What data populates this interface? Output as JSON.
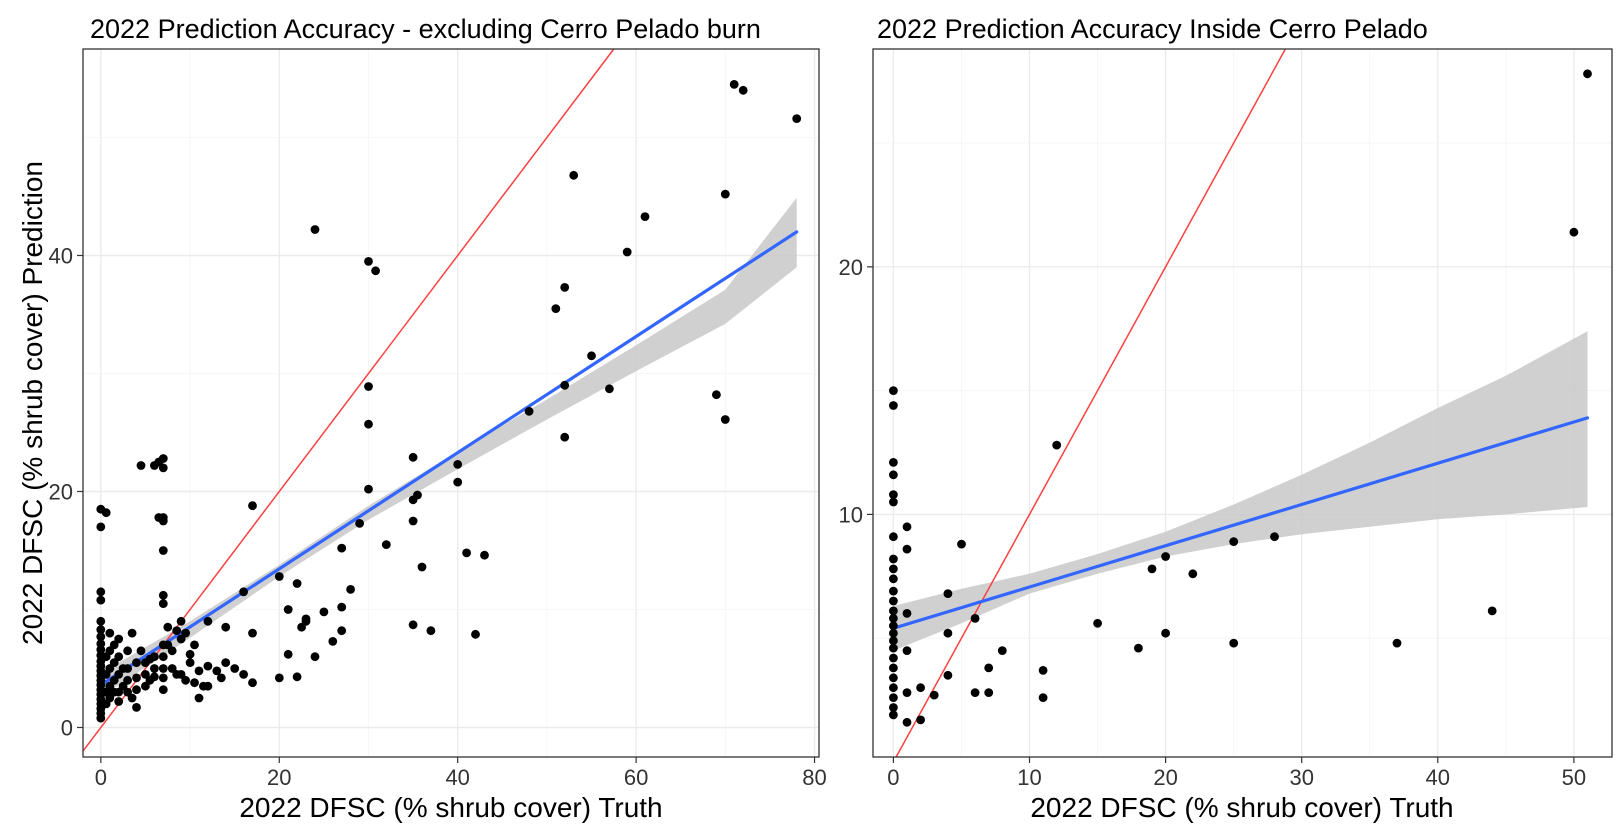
{
  "chart_data": [
    {
      "type": "scatter",
      "title": "2022 Prediction Accuracy - excluding Cerro Pelado burn",
      "xlabel": "2022 DFSC (% shrub cover) Truth",
      "ylabel": "2022 DFSC (% shrub cover) Prediction",
      "xlim": [
        -2,
        80.5
      ],
      "ylim": [
        -2.5,
        57.5
      ],
      "xticks": [
        0,
        20,
        40,
        60,
        80
      ],
      "yticks": [
        0,
        20,
        40
      ],
      "xtick_labels": [
        "0",
        "20",
        "40",
        "60",
        "80"
      ],
      "ytick_labels": [
        "0",
        "20",
        "40"
      ],
      "grid": true,
      "colors": {
        "points": "#000000",
        "fit": "#3366ff",
        "band": "#c8c8c8",
        "identity": "#ff4040"
      },
      "identity_line": {
        "slope": 1,
        "intercept": 0
      },
      "fit_line": {
        "x": [
          0,
          78
        ],
        "y": [
          3.6,
          42.0
        ]
      },
      "confidence_band": {
        "x": [
          0,
          10,
          20,
          30,
          40,
          50,
          60,
          70,
          78
        ],
        "lower": [
          2.6,
          7.6,
          12.8,
          17.6,
          21.9,
          26.1,
          30.2,
          34.2,
          39.0
        ],
        "upper": [
          4.6,
          9.0,
          13.8,
          18.8,
          23.4,
          27.8,
          32.4,
          37.1,
          44.9
        ]
      },
      "points": [
        [
          0,
          18.5
        ],
        [
          0,
          17
        ],
        [
          0.6,
          18.2
        ],
        [
          0,
          11.5
        ],
        [
          0,
          10.8
        ],
        [
          0,
          9
        ],
        [
          0,
          8.3
        ],
        [
          0,
          7.7
        ],
        [
          0,
          7.1
        ],
        [
          0,
          6.6
        ],
        [
          0,
          6.1
        ],
        [
          0,
          5.6
        ],
        [
          0,
          5.2
        ],
        [
          0,
          4.8
        ],
        [
          0,
          4.4
        ],
        [
          0,
          4
        ],
        [
          0,
          3.6
        ],
        [
          0,
          3.2
        ],
        [
          0,
          2.8
        ],
        [
          0,
          2.4
        ],
        [
          0,
          2
        ],
        [
          0,
          1.6
        ],
        [
          0,
          1.2
        ],
        [
          0,
          0.8
        ],
        [
          0.6,
          6
        ],
        [
          0.6,
          4.5
        ],
        [
          0.6,
          3
        ],
        [
          0.6,
          2
        ],
        [
          1,
          8
        ],
        [
          1,
          6.5
        ],
        [
          1,
          5
        ],
        [
          1,
          3.5
        ],
        [
          1,
          2.5
        ],
        [
          1.5,
          7
        ],
        [
          1.5,
          5.5
        ],
        [
          1.5,
          4
        ],
        [
          1.5,
          3
        ],
        [
          2,
          7.5
        ],
        [
          2,
          6
        ],
        [
          2,
          4.5
        ],
        [
          2,
          3
        ],
        [
          2,
          2.2
        ],
        [
          2.5,
          5
        ],
        [
          2.5,
          3.5
        ],
        [
          3,
          6.5
        ],
        [
          3,
          5
        ],
        [
          3,
          4
        ],
        [
          3,
          3
        ],
        [
          3.5,
          2.5
        ],
        [
          3.5,
          8
        ],
        [
          4,
          5.5
        ],
        [
          4,
          4.2
        ],
        [
          4,
          3.2
        ],
        [
          4,
          1.7
        ],
        [
          4.5,
          22.2
        ],
        [
          4.5,
          6.5
        ],
        [
          5,
          5.5
        ],
        [
          5,
          4.5
        ],
        [
          5,
          3.5
        ],
        [
          5.5,
          4
        ],
        [
          5.5,
          5.8
        ],
        [
          6,
          22.2
        ],
        [
          6,
          6
        ],
        [
          6,
          5
        ],
        [
          6,
          4.3
        ],
        [
          6.5,
          17.8
        ],
        [
          6.5,
          22.5
        ],
        [
          7,
          22.8
        ],
        [
          7,
          22
        ],
        [
          7,
          17.8
        ],
        [
          7,
          17.5
        ],
        [
          7,
          15
        ],
        [
          7,
          11.2
        ],
        [
          7,
          10.5
        ],
        [
          7,
          7
        ],
        [
          7,
          6
        ],
        [
          7,
          5
        ],
        [
          7,
          4.2
        ],
        [
          7,
          3.2
        ],
        [
          7.5,
          8.5
        ],
        [
          7.5,
          7
        ],
        [
          8,
          6.5
        ],
        [
          8,
          5
        ],
        [
          8.5,
          8.2
        ],
        [
          8.5,
          4.5
        ],
        [
          9,
          9
        ],
        [
          9,
          7.5
        ],
        [
          9,
          4.5
        ],
        [
          9.5,
          8
        ],
        [
          9.5,
          4
        ],
        [
          10,
          6.2
        ],
        [
          10,
          5.5
        ],
        [
          10.5,
          7
        ],
        [
          10.5,
          3.8
        ],
        [
          11,
          4.8
        ],
        [
          11,
          2.5
        ],
        [
          11.5,
          3.5
        ],
        [
          12,
          9
        ],
        [
          12,
          5.2
        ],
        [
          12,
          3.5
        ],
        [
          13,
          4.8
        ],
        [
          13.5,
          4.2
        ],
        [
          14,
          5.5
        ],
        [
          14,
          8.5
        ],
        [
          15,
          5
        ],
        [
          16,
          4.5
        ],
        [
          16,
          11.5
        ],
        [
          17,
          18.8
        ],
        [
          17,
          8
        ],
        [
          17,
          3.8
        ],
        [
          20,
          12.8
        ],
        [
          20,
          4.2
        ],
        [
          21,
          10
        ],
        [
          21,
          6.2
        ],
        [
          22,
          12.2
        ],
        [
          22,
          4.3
        ],
        [
          22.5,
          8.5
        ],
        [
          23,
          9.2
        ],
        [
          23,
          9
        ],
        [
          24,
          42.2
        ],
        [
          24,
          6
        ],
        [
          25,
          9.8
        ],
        [
          26,
          7.3
        ],
        [
          27,
          15.2
        ],
        [
          27,
          10.2
        ],
        [
          27,
          8.2
        ],
        [
          28,
          11.7
        ],
        [
          29,
          17.3
        ],
        [
          30,
          39.5
        ],
        [
          30.8,
          38.7
        ],
        [
          30,
          28.9
        ],
        [
          30,
          25.7
        ],
        [
          30,
          20.2
        ],
        [
          32,
          15.5
        ],
        [
          35,
          22.9
        ],
        [
          35,
          19.3
        ],
        [
          35.5,
          19.7
        ],
        [
          35,
          17.5
        ],
        [
          35,
          8.7
        ],
        [
          36,
          13.6
        ],
        [
          37,
          8.2
        ],
        [
          40,
          22.3
        ],
        [
          40,
          20.8
        ],
        [
          41,
          14.8
        ],
        [
          42,
          7.9
        ],
        [
          43,
          14.6
        ],
        [
          48,
          26.8
        ],
        [
          51,
          35.5
        ],
        [
          52,
          37.3
        ],
        [
          52,
          29
        ],
        [
          52,
          24.6
        ],
        [
          53,
          46.8
        ],
        [
          55,
          31.5
        ],
        [
          57,
          28.7
        ],
        [
          59,
          40.3
        ],
        [
          61,
          43.3
        ],
        [
          69,
          28.2
        ],
        [
          70,
          45.2
        ],
        [
          70,
          26.1
        ],
        [
          71,
          54.5
        ],
        [
          72,
          54
        ],
        [
          78,
          51.6
        ]
      ]
    },
    {
      "type": "scatter",
      "title": "2022 Prediction Accuracy Inside Cerro Pelado",
      "xlabel": "2022 DFSC (% shrub cover) Truth",
      "ylabel": "",
      "xlim": [
        -1.5,
        52.8
      ],
      "ylim": [
        0.2,
        28.8
      ],
      "xticks": [
        0,
        10,
        20,
        30,
        40,
        50
      ],
      "yticks": [
        10,
        20
      ],
      "xtick_labels": [
        "0",
        "10",
        "20",
        "30",
        "40",
        "50"
      ],
      "ytick_labels": [
        "10",
        "20"
      ],
      "grid": true,
      "colors": {
        "points": "#000000",
        "fit": "#3366ff",
        "band": "#c8c8c8",
        "identity": "#ff4040"
      },
      "identity_line": {
        "slope": 1,
        "intercept": 0
      },
      "fit_line": {
        "x": [
          0,
          51
        ],
        "y": [
          5.4,
          13.9
        ]
      },
      "confidence_band": {
        "x": [
          0,
          5,
          10,
          15,
          20,
          25,
          30,
          35,
          40,
          45,
          51
        ],
        "lower": [
          4.5,
          5.6,
          6.8,
          7.6,
          8.3,
          8.8,
          9.2,
          9.5,
          9.8,
          10.0,
          10.3
        ],
        "upper": [
          6.3,
          7.0,
          7.6,
          8.4,
          9.3,
          10.4,
          11.6,
          12.9,
          14.3,
          15.6,
          17.4
        ]
      },
      "points": [
        [
          0,
          15
        ],
        [
          0,
          14.4
        ],
        [
          0,
          12.1
        ],
        [
          0,
          11.6
        ],
        [
          0,
          10.8
        ],
        [
          0,
          10.5
        ],
        [
          0,
          9.1
        ],
        [
          0,
          8.2
        ],
        [
          0,
          7.8
        ],
        [
          0,
          7.4
        ],
        [
          0,
          6.9
        ],
        [
          0,
          6.5
        ],
        [
          0,
          6.1
        ],
        [
          0,
          5.8
        ],
        [
          0,
          5.5
        ],
        [
          0,
          5.2
        ],
        [
          0,
          4.9
        ],
        [
          0,
          4.6
        ],
        [
          0,
          4.2
        ],
        [
          0,
          3.8
        ],
        [
          0,
          3.4
        ],
        [
          0,
          3
        ],
        [
          0,
          2.6
        ],
        [
          0,
          2.2
        ],
        [
          0,
          1.9
        ],
        [
          1,
          9.5
        ],
        [
          1,
          8.6
        ],
        [
          1,
          6
        ],
        [
          1,
          4.5
        ],
        [
          1,
          2.8
        ],
        [
          1,
          1.6
        ],
        [
          2,
          3
        ],
        [
          2,
          1.7
        ],
        [
          3,
          2.7
        ],
        [
          4,
          6.8
        ],
        [
          4,
          5.2
        ],
        [
          4,
          3.5
        ],
        [
          5,
          8.8
        ],
        [
          6,
          5.8
        ],
        [
          6,
          2.8
        ],
        [
          7,
          3.8
        ],
        [
          7,
          2.8
        ],
        [
          8,
          4.5
        ],
        [
          11,
          3.7
        ],
        [
          11,
          2.6
        ],
        [
          12,
          12.8
        ],
        [
          15,
          5.6
        ],
        [
          18,
          4.6
        ],
        [
          19,
          7.8
        ],
        [
          20,
          8.3
        ],
        [
          20,
          5.2
        ],
        [
          22,
          7.6
        ],
        [
          25,
          8.9
        ],
        [
          25,
          4.8
        ],
        [
          28,
          9.1
        ],
        [
          37,
          4.8
        ],
        [
          44,
          6.1
        ],
        [
          50,
          21.4
        ],
        [
          51,
          27.8
        ]
      ]
    }
  ]
}
